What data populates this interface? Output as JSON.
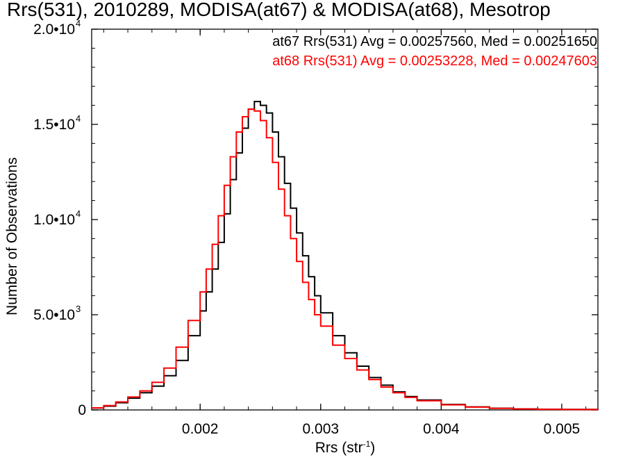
{
  "chart_data": {
    "type": "line",
    "title": "Rrs(531), 2010289, MODISA(at67) & MODISA(at68), Mesotrop",
    "xlabel": "Rrs (str",
    "xlabel_sup": "-1",
    "xlabel_suffix": ")",
    "ylabel": "Number of Observations",
    "xlim": [
      0.0011,
      0.0053
    ],
    "ylim": [
      0,
      20000
    ],
    "xticks": [
      0.002,
      0.003,
      0.004,
      0.005
    ],
    "xtick_labels": [
      "0.002",
      "0.003",
      "0.004",
      "0.005"
    ],
    "yticks": [
      {
        "value": 0,
        "mantissa": "0",
        "exponent": ""
      },
      {
        "value": 5000,
        "mantissa": "5.0•10",
        "exponent": "3"
      },
      {
        "value": 10000,
        "mantissa": "1.0•10",
        "exponent": "4"
      },
      {
        "value": 15000,
        "mantissa": "1.5•10",
        "exponent": "4"
      },
      {
        "value": 20000,
        "mantissa": "2.0•10",
        "exponent": "4"
      }
    ],
    "series": [
      {
        "name": "at67",
        "color": "#000000",
        "legend": "at67 Rrs(531) Avg = 0.00257560, Med = 0.00251650",
        "x": [
          0.0011,
          0.0012,
          0.0013,
          0.0014,
          0.0015,
          0.0016,
          0.0017,
          0.0018,
          0.0019,
          0.002,
          0.00205,
          0.0021,
          0.00215,
          0.0022,
          0.00225,
          0.0023,
          0.00235,
          0.0024,
          0.00245,
          0.0025,
          0.00255,
          0.0026,
          0.00265,
          0.0027,
          0.00275,
          0.0028,
          0.00285,
          0.0029,
          0.00295,
          0.003,
          0.0031,
          0.0032,
          0.0033,
          0.0034,
          0.0035,
          0.0036,
          0.0037,
          0.0038,
          0.004,
          0.0042,
          0.0044,
          0.0046,
          0.0048,
          0.005,
          0.0053
        ],
        "y": [
          100,
          200,
          380,
          620,
          900,
          1250,
          1800,
          2600,
          3900,
          5200,
          6200,
          7400,
          8800,
          10300,
          12100,
          13500,
          14800,
          15800,
          16200,
          16000,
          15600,
          14600,
          13300,
          11900,
          10600,
          9300,
          8100,
          7000,
          6000,
          5100,
          3900,
          3000,
          2300,
          1700,
          1300,
          950,
          700,
          520,
          290,
          160,
          90,
          55,
          35,
          25,
          20
        ]
      },
      {
        "name": "at68",
        "color": "#ff0000",
        "legend": "at68 Rrs(531) Avg = 0.00253228, Med = 0.00247603",
        "x": [
          0.0011,
          0.0012,
          0.0013,
          0.0014,
          0.0015,
          0.0016,
          0.0017,
          0.0018,
          0.0019,
          0.002,
          0.00205,
          0.0021,
          0.00215,
          0.0022,
          0.00225,
          0.0023,
          0.00235,
          0.0024,
          0.00245,
          0.0025,
          0.00255,
          0.0026,
          0.00265,
          0.0027,
          0.00275,
          0.0028,
          0.00285,
          0.0029,
          0.00295,
          0.003,
          0.0031,
          0.0032,
          0.0033,
          0.0034,
          0.0035,
          0.0036,
          0.0037,
          0.0038,
          0.004,
          0.0042,
          0.0044,
          0.0046,
          0.0048,
          0.005,
          0.0053
        ],
        "y": [
          110,
          230,
          420,
          680,
          1000,
          1450,
          2200,
          3300,
          4700,
          6200,
          7400,
          8700,
          10200,
          11800,
          13300,
          14600,
          15400,
          15800,
          15700,
          15200,
          14300,
          13000,
          11600,
          10200,
          9000,
          7800,
          6700,
          5800,
          5000,
          4400,
          3400,
          2700,
          2100,
          1600,
          1200,
          900,
          660,
          480,
          270,
          150,
          85,
          50,
          32,
          22,
          18
        ]
      }
    ],
    "grid": false,
    "legend_position": "top-right"
  }
}
